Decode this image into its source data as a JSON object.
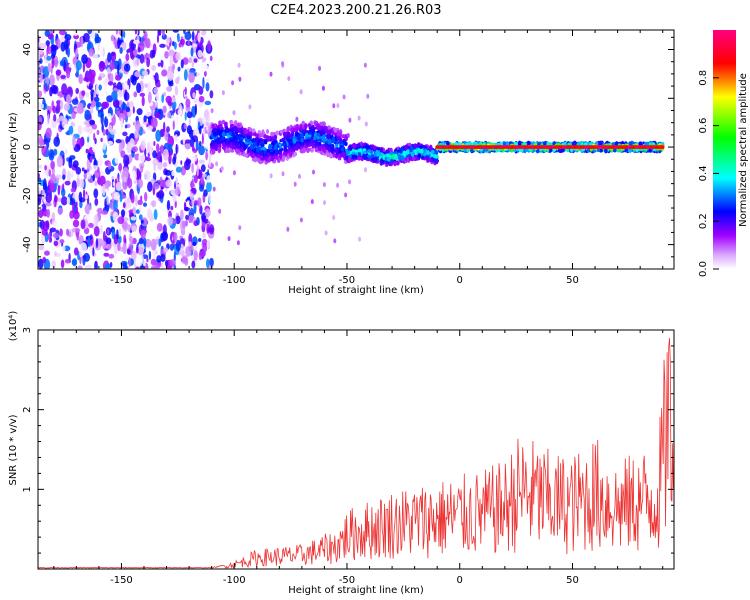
{
  "title": "C2E4.2023.200.21.26.R03",
  "chart_data": [
    {
      "type": "heatmap",
      "xlabel": "Height of straight line (km)",
      "ylabel": "Frequency (Hz)",
      "xlim": [
        -187,
        95
      ],
      "ylim": [
        -50,
        48
      ],
      "x_ticks": [
        -150,
        -100,
        -50,
        0,
        50
      ],
      "y_ticks": [
        -40,
        -20,
        0,
        20,
        40
      ],
      "colorbar": {
        "label": "Normalized spectral amplitude",
        "range": [
          0,
          1
        ],
        "ticks": [
          0.0,
          0.2,
          0.4,
          0.6,
          0.8
        ],
        "colors": [
          "#ffffff",
          "#a000ff",
          "#0000ff",
          "#00ffff",
          "#00ff00",
          "#ffff00",
          "#ff0000",
          "#ff0080"
        ]
      },
      "regions": [
        {
          "x_range": [
            -187,
            -110
          ],
          "freq_range": [
            -50,
            48
          ],
          "amplitude": 0.15,
          "pattern": "broad noise"
        },
        {
          "x_range": [
            -110,
            -50
          ],
          "freq_center": 2,
          "freq_halfwidth": 6,
          "amplitude": 0.35
        },
        {
          "x_range": [
            -50,
            -10
          ],
          "freq_center": -3,
          "freq_halfwidth": 3,
          "amplitude": 0.5
        },
        {
          "x_range": [
            -10,
            90
          ],
          "freq_center": 0,
          "freq_halfwidth": 1.5,
          "amplitude": 0.9
        }
      ]
    },
    {
      "type": "line",
      "xlabel": "Height of straight line (km)",
      "ylabel": "SNR (10 * v/v)",
      "y_multiplier": "(x10⁴)",
      "xlim": [
        -187,
        95
      ],
      "ylim": [
        0,
        3
      ],
      "x_ticks": [
        -150,
        -100,
        -50,
        0,
        50
      ],
      "y_ticks": [
        1,
        2,
        3
      ],
      "color": "#ee3333",
      "envelope": [
        {
          "x": -187,
          "y": 0.02
        },
        {
          "x": -110,
          "y": 0.02
        },
        {
          "x": -100,
          "y": 0.08
        },
        {
          "x": -90,
          "y": 0.2
        },
        {
          "x": -70,
          "y": 0.25
        },
        {
          "x": -55,
          "y": 0.4
        },
        {
          "x": -50,
          "y": 0.6
        },
        {
          "x": -40,
          "y": 0.7
        },
        {
          "x": -30,
          "y": 0.8
        },
        {
          "x": -20,
          "y": 0.85
        },
        {
          "x": -10,
          "y": 0.9
        },
        {
          "x": 0,
          "y": 0.95
        },
        {
          "x": 10,
          "y": 1.0
        },
        {
          "x": 20,
          "y": 1.1
        },
        {
          "x": 27,
          "y": 1.4
        },
        {
          "x": 40,
          "y": 1.2
        },
        {
          "x": 50,
          "y": 1.15
        },
        {
          "x": 60,
          "y": 1.35
        },
        {
          "x": 70,
          "y": 1.1
        },
        {
          "x": 80,
          "y": 1.2
        },
        {
          "x": 88,
          "y": 1.3
        },
        {
          "x": 93,
          "y": 2.9
        },
        {
          "x": 95,
          "y": 1.2
        }
      ]
    }
  ]
}
